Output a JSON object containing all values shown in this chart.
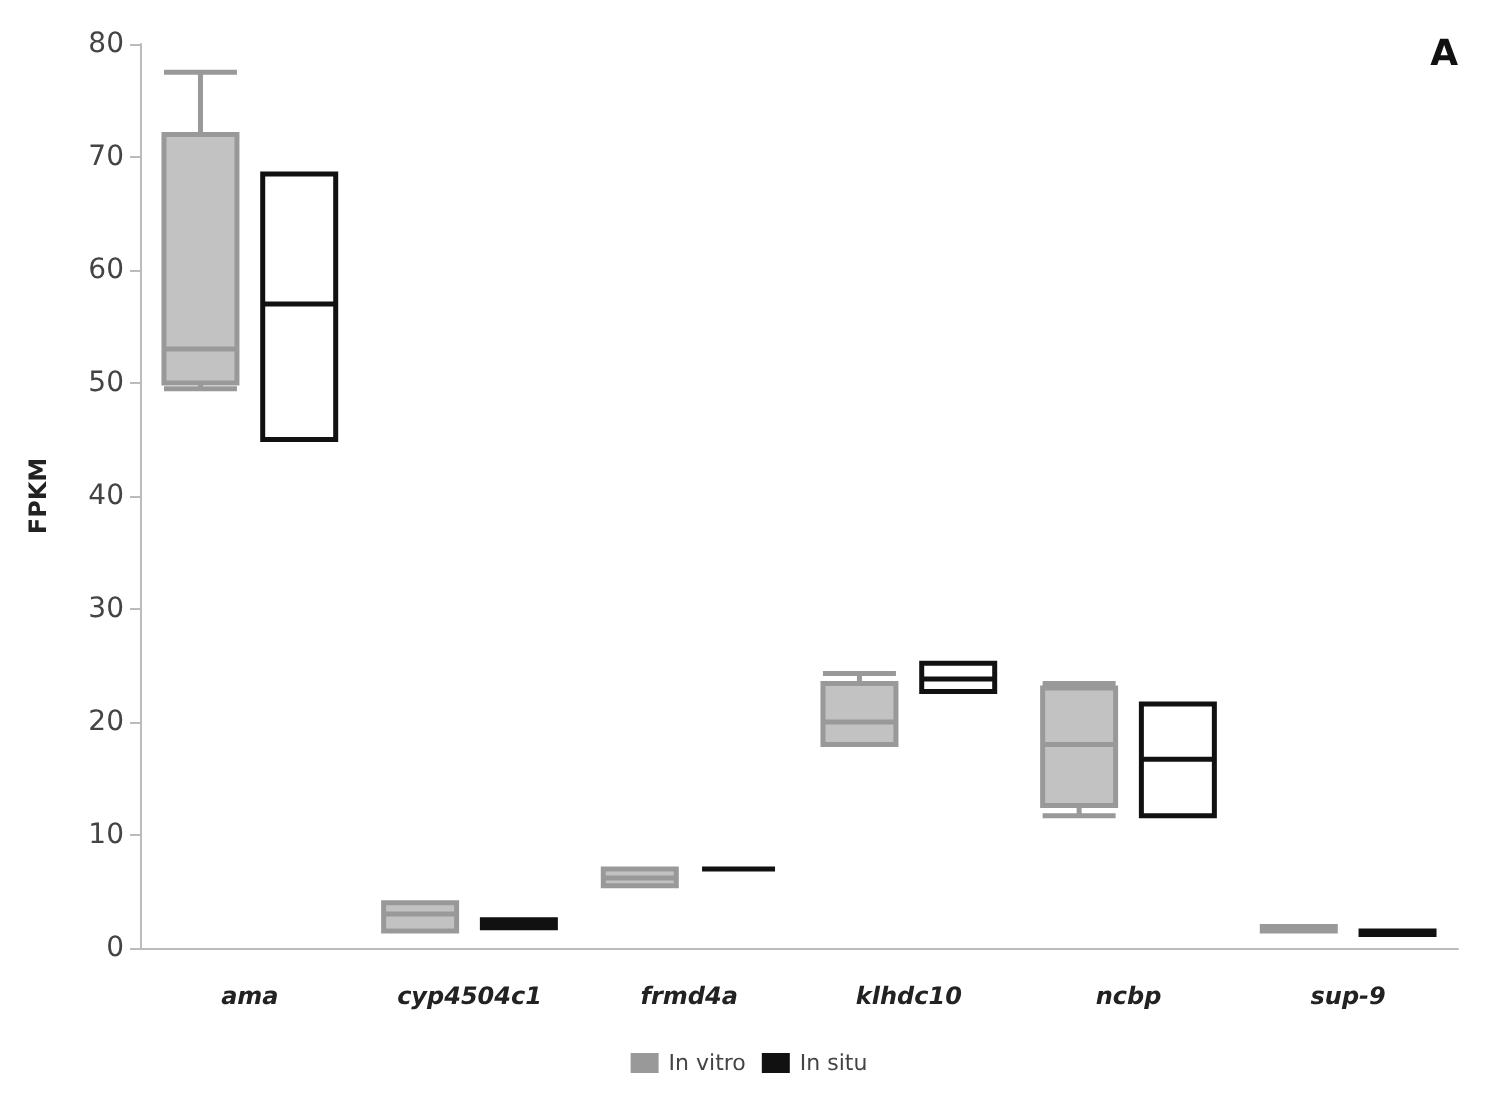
{
  "chart_data": {
    "type": "box",
    "ylabel": "FPKM",
    "annotations": [
      "A"
    ],
    "categories": [
      "ama",
      "cyp4504c1",
      "frmd4a",
      "klhdc10",
      "ncbp",
      "sup-9"
    ],
    "ylim": [
      0,
      80
    ],
    "yticks": [
      0,
      10,
      20,
      30,
      40,
      50,
      60,
      70,
      80
    ],
    "grid": false,
    "legend": "bottom",
    "series": [
      {
        "name": "In vitro",
        "color": "#999999",
        "boxes": [
          {
            "low": 49.5,
            "q1": 50,
            "median": 53,
            "q3": 72,
            "high": 77.5
          },
          {
            "low": 1.5,
            "q1": 1.5,
            "median": 3,
            "q3": 4,
            "high": 4
          },
          {
            "low": 5.5,
            "q1": 5.5,
            "median": 6.2,
            "q3": 7,
            "high": 7
          },
          {
            "low": 18,
            "q1": 18,
            "median": 20,
            "q3": 23.4,
            "high": 24.3
          },
          {
            "low": 11.7,
            "q1": 12.6,
            "median": 18,
            "q3": 23,
            "high": 23.4
          },
          {
            "low": 1.5,
            "q1": 1.5,
            "median": 1.7,
            "q3": 1.9,
            "high": 1.9
          }
        ]
      },
      {
        "name": "In situ",
        "color": "#111111",
        "boxes": [
          {
            "low": 45,
            "q1": 45,
            "median": 57,
            "q3": 68.5,
            "high": 68.5
          },
          {
            "low": 1.8,
            "q1": 1.8,
            "median": 2.2,
            "q3": 2.5,
            "high": 2.5
          },
          {
            "low": 7,
            "q1": 7,
            "median": 7,
            "q3": 7,
            "high": 7
          },
          {
            "low": 22.7,
            "q1": 22.7,
            "median": 23.8,
            "q3": 25.2,
            "high": 25.2
          },
          {
            "low": 11.7,
            "q1": 11.7,
            "median": 16.7,
            "q3": 21.6,
            "high": 21.6
          },
          {
            "low": 1.2,
            "q1": 1.2,
            "median": 1.3,
            "q3": 1.5,
            "high": 1.5
          }
        ]
      }
    ]
  }
}
